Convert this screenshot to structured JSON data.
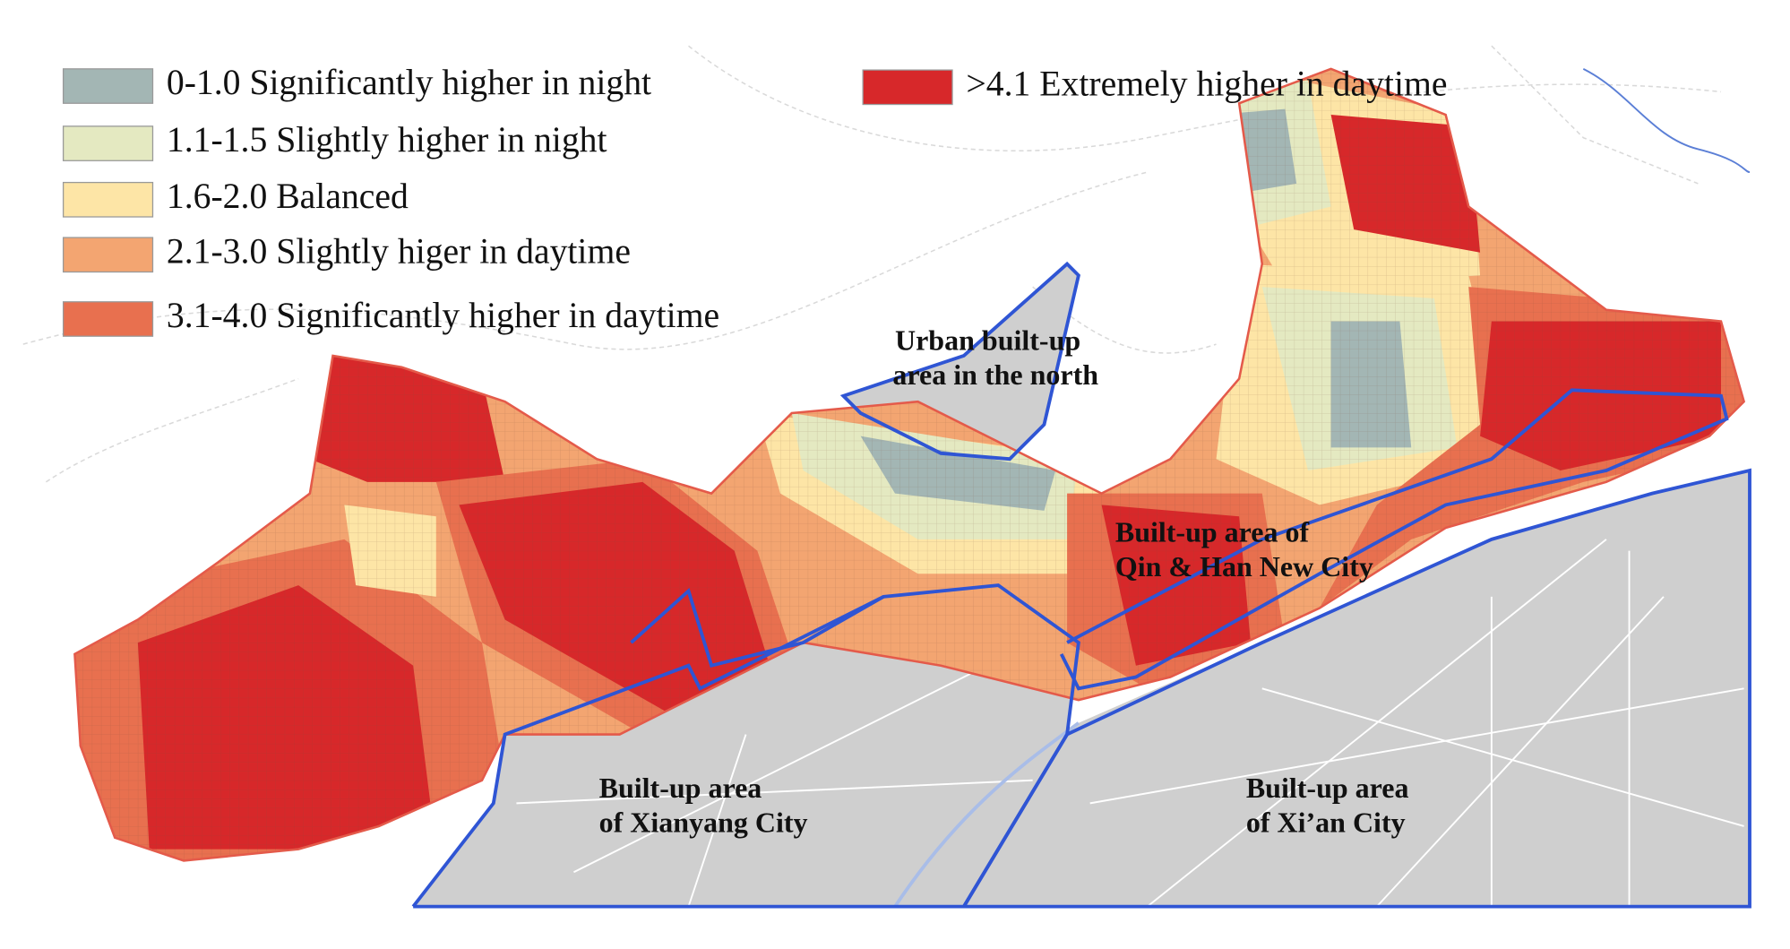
{
  "legend": [
    {
      "label": "0-1.0 Significantly higher in night",
      "color": "#a3b6b4"
    },
    {
      "label": "1.1-1.5 Slightly higher in night",
      "color": "#e4e9c1"
    },
    {
      "label": "1.6-2.0 Balanced",
      "color": "#fde5a6"
    },
    {
      "label": "2.1-3.0 Slightly higer in daytime",
      "color": "#f3a571"
    },
    {
      "label": "3.1-4.0 Significantly higher in daytime",
      "color": "#e8704f"
    },
    {
      "label": ">4.1 Extremely higher in daytime",
      "color": "#d7282a"
    }
  ],
  "areas": [
    {
      "lines": [
        "Urban built-up",
        "area in the north"
      ]
    },
    {
      "lines": [
        "Built-up area of",
        "Qin & Han New City"
      ]
    },
    {
      "lines": [
        "Built-up area",
        "of Xianyang City"
      ]
    },
    {
      "lines": [
        "Built-up area",
        "of Xi’an City"
      ]
    }
  ]
}
